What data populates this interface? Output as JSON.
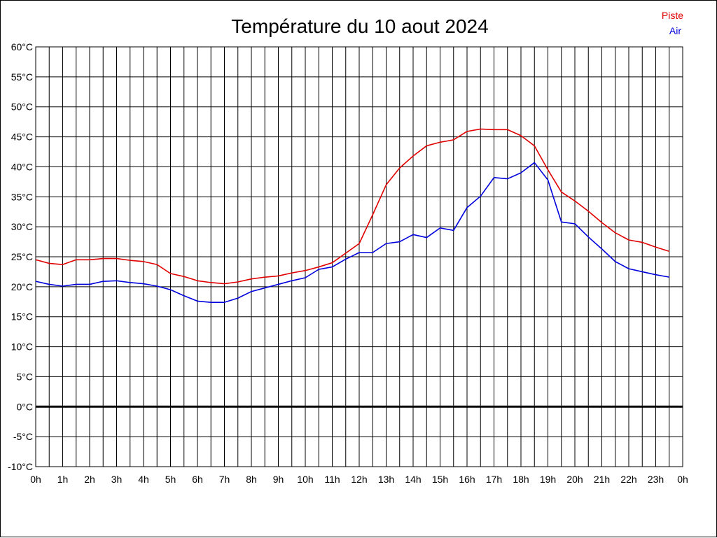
{
  "chart_data": {
    "type": "line",
    "title": "Température du 10 aout 2024",
    "xlabel": "",
    "ylabel": "",
    "ylim": [
      -10,
      60
    ],
    "xlim": [
      0,
      24
    ],
    "y_unit": "°C",
    "y_ticks": [
      -10,
      -5,
      0,
      5,
      10,
      15,
      20,
      25,
      30,
      35,
      40,
      45,
      50,
      55,
      60
    ],
    "x_ticks": [
      "0h",
      "1h",
      "2h",
      "3h",
      "4h",
      "5h",
      "6h",
      "7h",
      "8h",
      "9h",
      "10h",
      "11h",
      "12h",
      "13h",
      "14h",
      "15h",
      "16h",
      "17h",
      "18h",
      "19h",
      "20h",
      "21h",
      "22h",
      "23h",
      "0h"
    ],
    "grid": true,
    "zero_line": true,
    "legend_position": "top-right",
    "x_hours": [
      0,
      0.5,
      1,
      1.5,
      2,
      2.5,
      3,
      3.5,
      4,
      4.5,
      5,
      5.5,
      6,
      6.5,
      7,
      7.5,
      8,
      8.5,
      9,
      9.5,
      10,
      10.5,
      11,
      11.5,
      12,
      12.5,
      13,
      13.5,
      14,
      14.5,
      15,
      15.5,
      16,
      16.5,
      17,
      17.5,
      18,
      18.5,
      19,
      19.5,
      20,
      20.5,
      21,
      21.5,
      22,
      22.5,
      23,
      23.5
    ],
    "series": [
      {
        "name": "Piste",
        "color": "#e00000",
        "values": [
          24.5,
          23.9,
          23.7,
          24.5,
          24.5,
          24.7,
          24.7,
          24.4,
          24.2,
          23.7,
          22.2,
          21.7,
          21.0,
          20.7,
          20.5,
          20.8,
          21.3,
          21.6,
          21.8,
          22.3,
          22.7,
          23.3,
          24.0,
          25.6,
          27.2,
          32.0,
          37.0,
          39.8,
          41.8,
          43.5,
          44.1,
          44.5,
          45.9,
          46.3,
          46.2,
          46.2,
          45.2,
          43.5,
          39.5,
          35.8,
          34.3,
          32.6,
          30.7,
          29.0,
          27.8,
          27.4,
          26.6,
          25.9
        ]
      },
      {
        "name": "Air",
        "color": "#0000dd",
        "values": [
          20.9,
          20.4,
          20.1,
          20.4,
          20.4,
          20.9,
          21.0,
          20.7,
          20.5,
          20.1,
          19.5,
          18.5,
          17.6,
          17.4,
          17.4,
          18.1,
          19.2,
          19.8,
          20.4,
          21.0,
          21.5,
          22.9,
          23.3,
          24.6,
          25.7,
          25.7,
          27.2,
          27.5,
          28.7,
          28.2,
          29.8,
          29.4,
          33.2,
          35.1,
          38.2,
          38.0,
          39.0,
          40.7,
          37.8,
          30.8,
          30.5,
          28.3,
          26.3,
          24.2,
          23.0,
          22.5,
          22.0,
          21.6
        ]
      }
    ]
  }
}
